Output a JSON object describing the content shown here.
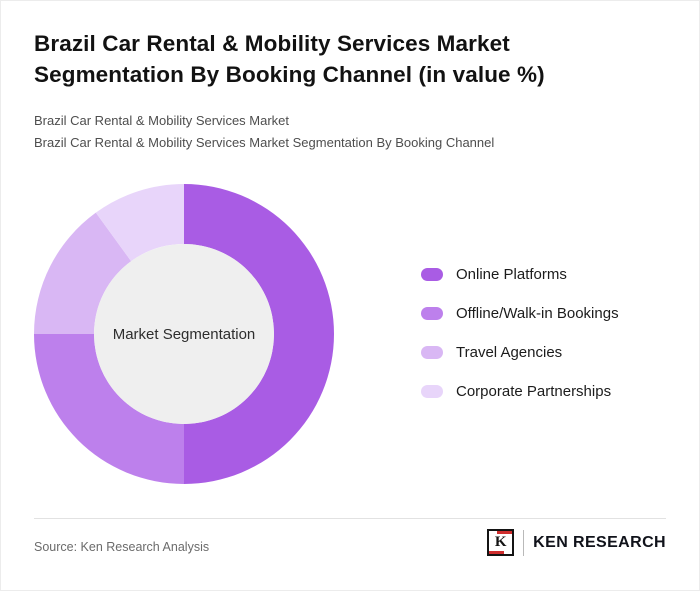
{
  "title": {
    "line1": "Brazil Car Rental & Mobility Services Market",
    "line2": "Segmentation By Booking Channel (in value %)"
  },
  "subtitles": {
    "line1": "Brazil Car Rental & Mobility Services Market",
    "line2": "Brazil Car Rental & Mobility Services Market Segmentation By Booking Channel"
  },
  "chart_data": {
    "type": "pie",
    "donut": true,
    "start_angle_deg": 0,
    "direction": "clockwise",
    "center_label": "Market Segmentation",
    "center_fill": "#efefef",
    "categories": [
      "Online Platforms",
      "Offline/Walk-in Bookings",
      "Travel Agencies",
      "Corporate Partnerships"
    ],
    "values": [
      50,
      25,
      15,
      10
    ],
    "colors": [
      "#a95ce4",
      "#bd80ec",
      "#d9b7f4",
      "#e8d5fa"
    ],
    "legend_position": "right",
    "note": "No numeric labels shown in figure; values estimated from arc angles"
  },
  "footer": {
    "source": "Source: Ken Research Analysis",
    "logo": {
      "letter": "K",
      "text": "KEN RESEARCH",
      "accent_color": "#cf2e2e"
    }
  }
}
